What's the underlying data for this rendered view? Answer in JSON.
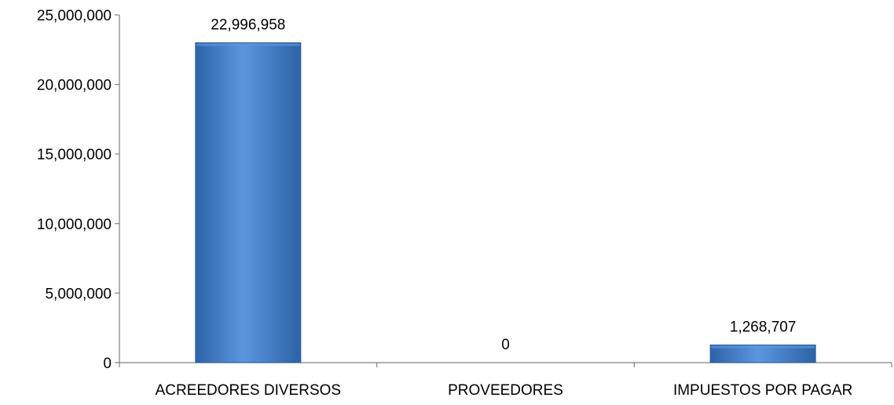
{
  "chart_data": {
    "type": "bar",
    "categories": [
      "ACREEDORES DIVERSOS",
      "PROVEEDORES",
      "IMPUESTOS POR PAGAR"
    ],
    "values": [
      22996958,
      0,
      1268707
    ],
    "data_labels": [
      "22,996,958",
      "0",
      "1,268,707"
    ],
    "ylim": [
      0,
      25000000
    ],
    "y_ticks": [
      0,
      5000000,
      10000000,
      15000000,
      20000000,
      25000000
    ],
    "y_tick_labels": [
      "0",
      "5,000,000",
      "10,000,000",
      "15,000,000",
      "20,000,000",
      "25,000,000"
    ],
    "grid": false,
    "legend": "none",
    "colors": {
      "bar_fill": "#3f7fcf",
      "bar_fill_light": "#5b96dd",
      "bar_fill_dark": "#2c63a8",
      "bar_edge": "#2a5d9c",
      "axis": "#808080"
    }
  }
}
